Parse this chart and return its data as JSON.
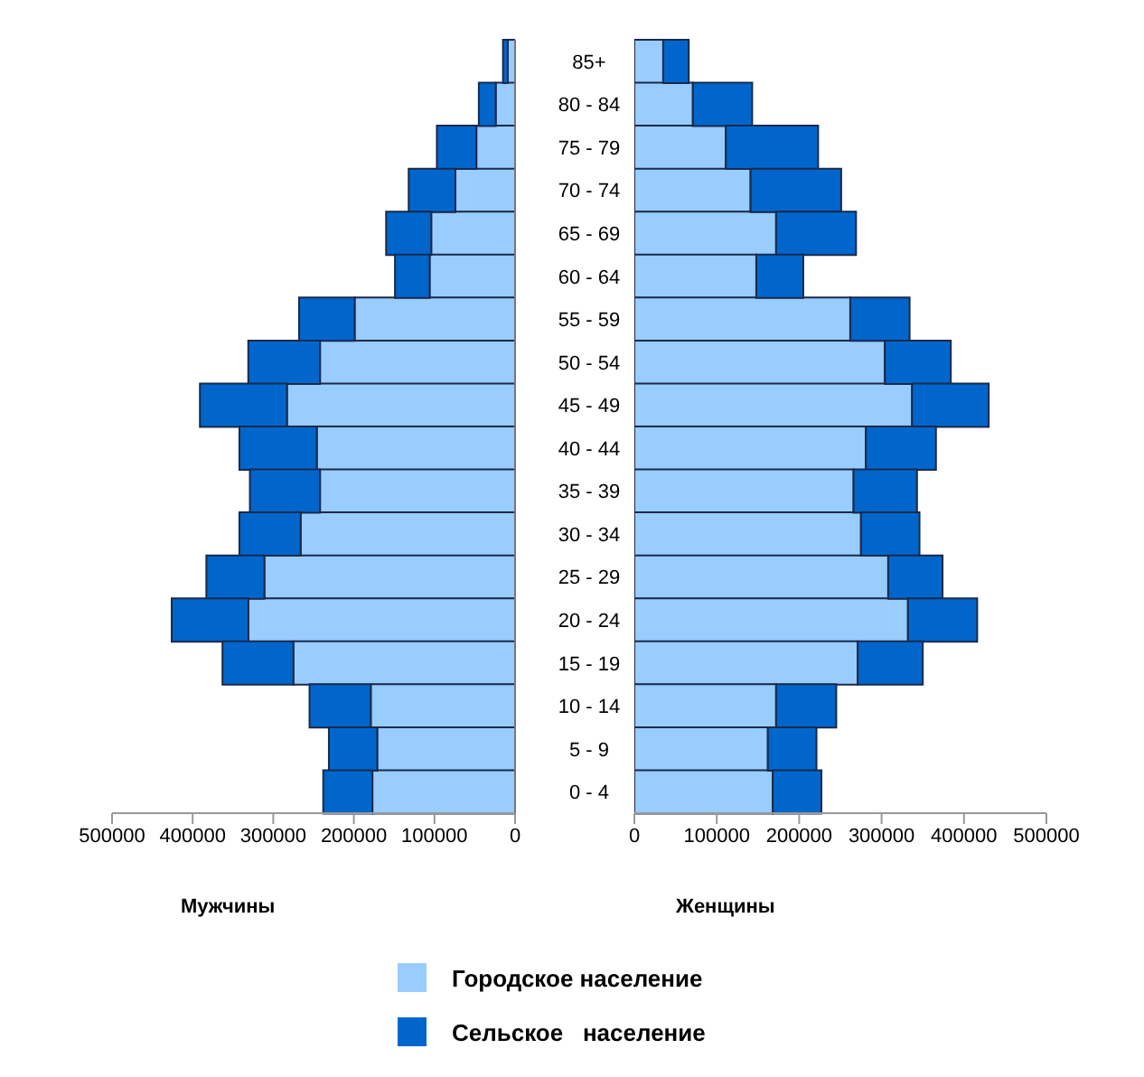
{
  "chart_data": [
    {
      "type": "bar",
      "orientation": "horizontal",
      "stacked": true,
      "xlabel": "Мужчины",
      "categories": [
        "85+",
        "80 - 84",
        "75 - 79",
        "70 - 74",
        "65 - 69",
        "60 - 64",
        "55 - 59",
        "50 - 54",
        "45 - 49",
        "40 - 44",
        "35 - 39",
        "30 - 34",
        "25 - 29",
        "20 - 24",
        "15 - 19",
        "10 - 14",
        "5  -  9",
        "0  -  4"
      ],
      "xlim": [
        500000,
        0
      ],
      "xticks": [
        500000,
        400000,
        300000,
        200000,
        100000,
        0
      ],
      "legend": "bottom",
      "series": [
        {
          "name": "Городское население",
          "color": "#99ccff",
          "values": [
            9000,
            24000,
            48000,
            74000,
            104000,
            106000,
            199000,
            242000,
            283000,
            246000,
            242000,
            266000,
            311000,
            331000,
            275000,
            179000,
            171000,
            177000
          ]
        },
        {
          "name": "Сельское   население",
          "color": "#0066cc",
          "values": [
            6000,
            21000,
            49000,
            58000,
            56000,
            43000,
            69000,
            89000,
            108000,
            96000,
            87000,
            76000,
            72000,
            95000,
            88000,
            76000,
            60000,
            61000
          ]
        }
      ]
    },
    {
      "type": "bar",
      "orientation": "horizontal",
      "stacked": true,
      "xlabel": "Женщины",
      "categories": [
        null,
        null,
        null,
        null,
        null,
        null,
        null,
        null,
        null,
        null,
        null,
        null,
        null,
        null,
        null,
        null,
        null,
        null
      ],
      "xlim": [
        0,
        500000
      ],
      "xticks": [
        0,
        100000,
        200000,
        300000,
        400000,
        500000
      ],
      "series": [
        {
          "color": "#99ccff",
          "values": [
            35000,
            71000,
            111000,
            141000,
            172000,
            148000,
            262000,
            304000,
            337000,
            281000,
            266000,
            275000,
            308000,
            332000,
            271000,
            172000,
            162000,
            168000
          ]
        },
        {
          "color": "#0066cc",
          "values": [
            31000,
            72000,
            112000,
            110000,
            97000,
            57000,
            72000,
            80000,
            93000,
            85000,
            77000,
            71000,
            66000,
            84000,
            79000,
            73000,
            59000,
            59000
          ]
        }
      ]
    }
  ]
}
